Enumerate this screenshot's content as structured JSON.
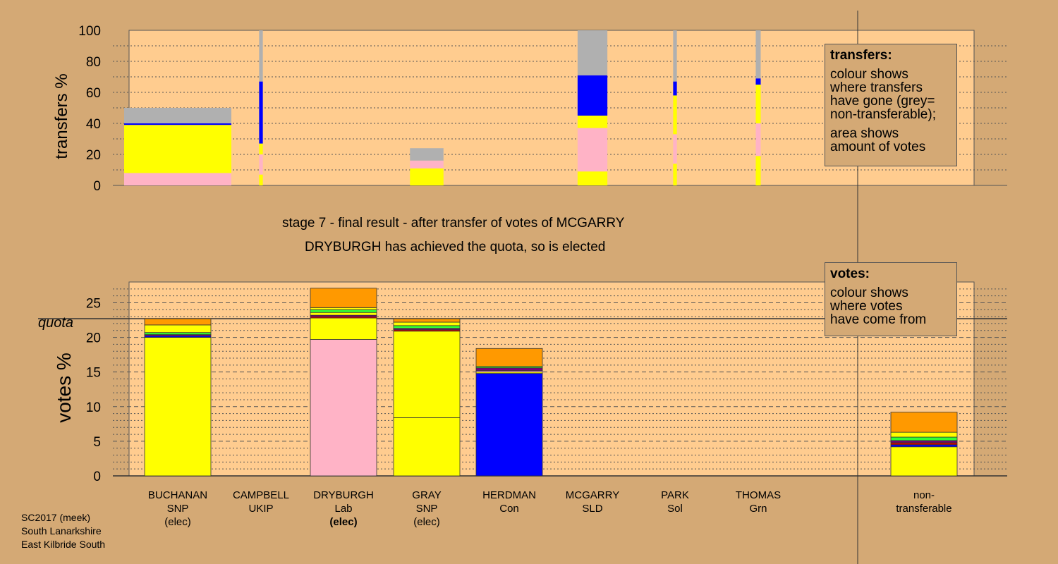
{
  "stage_caption": "stage 7 - final result - after transfer of votes of MCGARRY",
  "elected_caption": "DRYBURGH has achieved the quota, so is elected",
  "transfers_legend": {
    "title": "transfers:",
    "lines": [
      "colour shows",
      "where transfers",
      "have gone (grey=",
      "non-transferable);"
    ],
    "lines2": [
      "area shows",
      "amount of votes"
    ]
  },
  "votes_legend": {
    "title": "votes:",
    "lines": [
      "colour shows",
      "where votes",
      "have come from"
    ]
  },
  "footer": {
    "line1": "SC2017 (meek)",
    "line2": "South Lanarkshire",
    "line3": "East Kilbride South"
  },
  "colors": {
    "SNP": "#ffff00",
    "Lab": "#ffb3c6",
    "Con": "#0000ff",
    "UKIP": "#7a007a",
    "SLD": "#ff9900",
    "Sol": "#cc0000",
    "Grn": "#33ff33",
    "nontransferable": "#b0b0b0",
    "background": "#d4a975",
    "plot_background": "#ffcc8f"
  },
  "candidates": [
    {
      "name": "BUCHANAN",
      "party": "SNP",
      "status": "(elec)",
      "status_bold": false
    },
    {
      "name": "CAMPBELL",
      "party": "UKIP",
      "status": "",
      "status_bold": false
    },
    {
      "name": "DRYBURGH",
      "party": "Lab",
      "status": "(elec)",
      "status_bold": true
    },
    {
      "name": "GRAY",
      "party": "SNP",
      "status": "(elec)",
      "status_bold": false
    },
    {
      "name": "HERDMAN",
      "party": "Con",
      "status": "",
      "status_bold": false
    },
    {
      "name": "MCGARRY",
      "party": "SLD",
      "status": "",
      "status_bold": false
    },
    {
      "name": "PARK",
      "party": "Sol",
      "status": "",
      "status_bold": false
    },
    {
      "name": "THOMAS",
      "party": "Grn",
      "status": "",
      "status_bold": false
    },
    {
      "name": "non-",
      "party": "transferable",
      "status": "",
      "status_bold": false
    }
  ],
  "chart_data": [
    {
      "type": "bar",
      "ylabel": "transfers %",
      "ylim": [
        0,
        100
      ],
      "yticks": [
        0,
        20,
        40,
        60,
        80,
        100
      ],
      "bars": [
        {
          "source": "BUCHANAN",
          "width_pct_of_slot": 1.0,
          "segments": [
            {
              "party": "Lab",
              "from": 0,
              "to": 8
            },
            {
              "party": "SNP",
              "from": 8,
              "to": 39
            },
            {
              "party": "Con",
              "from": 39,
              "to": 40
            },
            {
              "party": "nontransferable",
              "from": 40,
              "to": 50
            }
          ]
        },
        {
          "source": "CAMPBELL",
          "width_pct_of_slot": 0.03,
          "segments": [
            {
              "party": "SNP",
              "from": 0,
              "to": 7
            },
            {
              "party": "Lab",
              "from": 7,
              "to": 20
            },
            {
              "party": "SNP",
              "from": 20,
              "to": 27
            },
            {
              "party": "Con",
              "from": 27,
              "to": 67
            },
            {
              "party": "nontransferable",
              "from": 67,
              "to": 100
            }
          ]
        },
        {
          "source": "GRAY",
          "width_pct_of_slot": 0.27,
          "segments": [
            {
              "party": "SNP",
              "from": 0,
              "to": 11
            },
            {
              "party": "Lab",
              "from": 11,
              "to": 16
            },
            {
              "party": "nontransferable",
              "from": 16,
              "to": 24
            }
          ]
        },
        {
          "source": "MCGARRY",
          "width_pct_of_slot": 0.24,
          "segments": [
            {
              "party": "SNP",
              "from": 0,
              "to": 9
            },
            {
              "party": "Lab",
              "from": 9,
              "to": 37
            },
            {
              "party": "SNP",
              "from": 37,
              "to": 45
            },
            {
              "party": "Con",
              "from": 45,
              "to": 71
            },
            {
              "party": "nontransferable",
              "from": 71,
              "to": 100
            }
          ]
        },
        {
          "source": "PARK",
          "width_pct_of_slot": 0.03,
          "segments": [
            {
              "party": "SNP",
              "from": 0,
              "to": 14
            },
            {
              "party": "Lab",
              "from": 14,
              "to": 33
            },
            {
              "party": "SNP",
              "from": 33,
              "to": 58
            },
            {
              "party": "Con",
              "from": 58,
              "to": 67
            },
            {
              "party": "nontransferable",
              "from": 67,
              "to": 100
            }
          ]
        },
        {
          "source": "THOMAS",
          "width_pct_of_slot": 0.04,
          "segments": [
            {
              "party": "SNP",
              "from": 0,
              "to": 19
            },
            {
              "party": "Lab",
              "from": 19,
              "to": 40
            },
            {
              "party": "SNP",
              "from": 40,
              "to": 65
            },
            {
              "party": "Con",
              "from": 65,
              "to": 69
            },
            {
              "party": "nontransferable",
              "from": 69,
              "to": 100
            }
          ]
        }
      ]
    },
    {
      "type": "bar",
      "ylabel": "votes %",
      "ylim": [
        0,
        28
      ],
      "yticks": [
        0,
        5,
        10,
        15,
        20,
        25
      ],
      "quota": 22.7,
      "quota_label": "quota",
      "bars": [
        {
          "candidate": "BUCHANAN",
          "segments": [
            {
              "party": "SNP",
              "from": 0,
              "to": 20.0
            },
            {
              "party": "Con",
              "from": 20.0,
              "to": 20.2
            },
            {
              "party": "UKIP",
              "from": 20.2,
              "to": 20.4
            },
            {
              "party": "Grn",
              "from": 20.4,
              "to": 20.7
            },
            {
              "party": "SNP",
              "from": 20.7,
              "to": 21.8
            },
            {
              "party": "SLD",
              "from": 21.8,
              "to": 22.7
            }
          ]
        },
        {
          "candidate": "DRYBURGH",
          "segments": [
            {
              "party": "Lab",
              "from": 0,
              "to": 19.7
            },
            {
              "party": "SNP",
              "from": 19.7,
              "to": 22.8
            },
            {
              "party": "Sol",
              "from": 22.8,
              "to": 23.0
            },
            {
              "party": "UKIP",
              "from": 23.0,
              "to": 23.2
            },
            {
              "party": "SNP",
              "from": 23.2,
              "to": 23.6
            },
            {
              "party": "Grn",
              "from": 23.6,
              "to": 24.0
            },
            {
              "party": "SNP",
              "from": 24.0,
              "to": 24.3
            },
            {
              "party": "SLD",
              "from": 24.3,
              "to": 27.1
            }
          ]
        },
        {
          "candidate": "GRAY",
          "segments": [
            {
              "party": "SNP",
              "from": 0,
              "to": 8.4
            },
            {
              "party": "SNP",
              "from": 8.4,
              "to": 20.9
            },
            {
              "party": "Sol",
              "from": 20.9,
              "to": 21.1
            },
            {
              "party": "UKIP",
              "from": 21.1,
              "to": 21.3
            },
            {
              "party": "Grn",
              "from": 21.3,
              "to": 21.7
            },
            {
              "party": "SNP",
              "from": 21.7,
              "to": 22.2
            },
            {
              "party": "SLD",
              "from": 22.2,
              "to": 22.7
            }
          ]
        },
        {
          "candidate": "HERDMAN",
          "segments": [
            {
              "party": "Con",
              "from": 0,
              "to": 14.8
            },
            {
              "party": "SNP",
              "from": 14.8,
              "to": 15.0
            },
            {
              "party": "Lab",
              "from": 15.0,
              "to": 15.2
            },
            {
              "party": "UKIP",
              "from": 15.2,
              "to": 15.6
            },
            {
              "party": "Grn",
              "from": 15.6,
              "to": 15.8
            },
            {
              "party": "SLD",
              "from": 15.8,
              "to": 18.4
            }
          ]
        },
        {
          "candidate": "non-transferable",
          "segments": [
            {
              "party": "SNP",
              "from": 0,
              "to": 4.2
            },
            {
              "party": "Con",
              "from": 4.2,
              "to": 4.5
            },
            {
              "party": "Sol",
              "from": 4.5,
              "to": 4.8
            },
            {
              "party": "UKIP",
              "from": 4.8,
              "to": 5.1
            },
            {
              "party": "Grn",
              "from": 5.1,
              "to": 5.6
            },
            {
              "party": "SNP",
              "from": 5.6,
              "to": 6.3
            },
            {
              "party": "SLD",
              "from": 6.3,
              "to": 9.2
            }
          ]
        }
      ]
    }
  ]
}
